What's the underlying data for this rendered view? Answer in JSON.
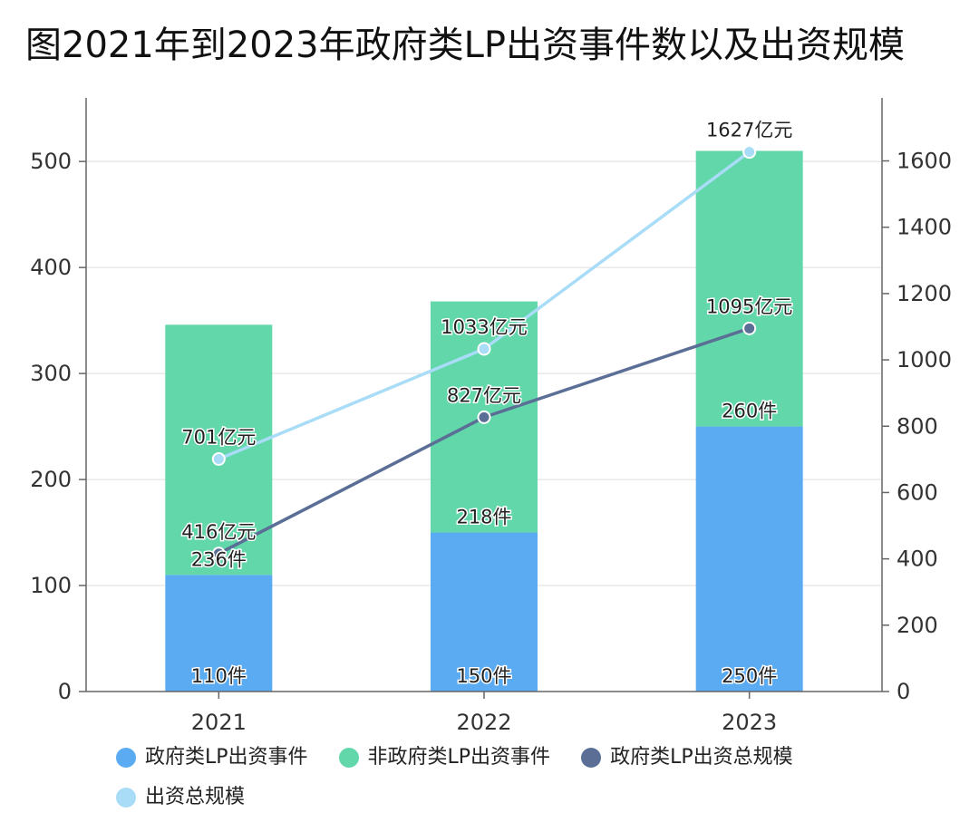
{
  "chart_data": {
    "type": "bar",
    "title": "图2021年到2023年政府类LP出资事件数以及出资规模",
    "categories": [
      "2021",
      "2022",
      "2023"
    ],
    "stacked": true,
    "series": [
      {
        "name": "政府类LP出资事件",
        "kind": "bar",
        "axis": "left",
        "color": "#5aabf2",
        "values": [
          110,
          150,
          250
        ],
        "labels": [
          "110件",
          "150件",
          "250件"
        ]
      },
      {
        "name": "非政府类LP出资事件",
        "kind": "bar",
        "axis": "left",
        "color": "#62d7aa",
        "values": [
          236,
          218,
          260
        ],
        "labels": [
          "236件",
          "218件",
          "260件"
        ]
      },
      {
        "name": "政府类LP出资总规模",
        "kind": "line",
        "axis": "right",
        "color": "#5a6e96",
        "values": [
          416,
          827,
          1095
        ],
        "labels": [
          "416亿元",
          "827亿元",
          "1095亿元"
        ]
      },
      {
        "name": "出资总规模",
        "kind": "line",
        "axis": "right",
        "color": "#a8dcf7",
        "values": [
          701,
          1033,
          1627
        ],
        "labels": [
          "701亿元",
          "1033亿元",
          "1627亿元"
        ]
      }
    ],
    "y_left": {
      "min": 0,
      "max": 560,
      "ticks": [
        "0",
        "100",
        "200",
        "300",
        "400",
        "500"
      ]
    },
    "y_right": {
      "min": 0,
      "max": 1790,
      "ticks": [
        "0",
        "200",
        "400",
        "600",
        "800",
        "1000",
        "1200",
        "1400",
        "1600"
      ]
    },
    "grid": true,
    "legend_position": "bottom"
  }
}
